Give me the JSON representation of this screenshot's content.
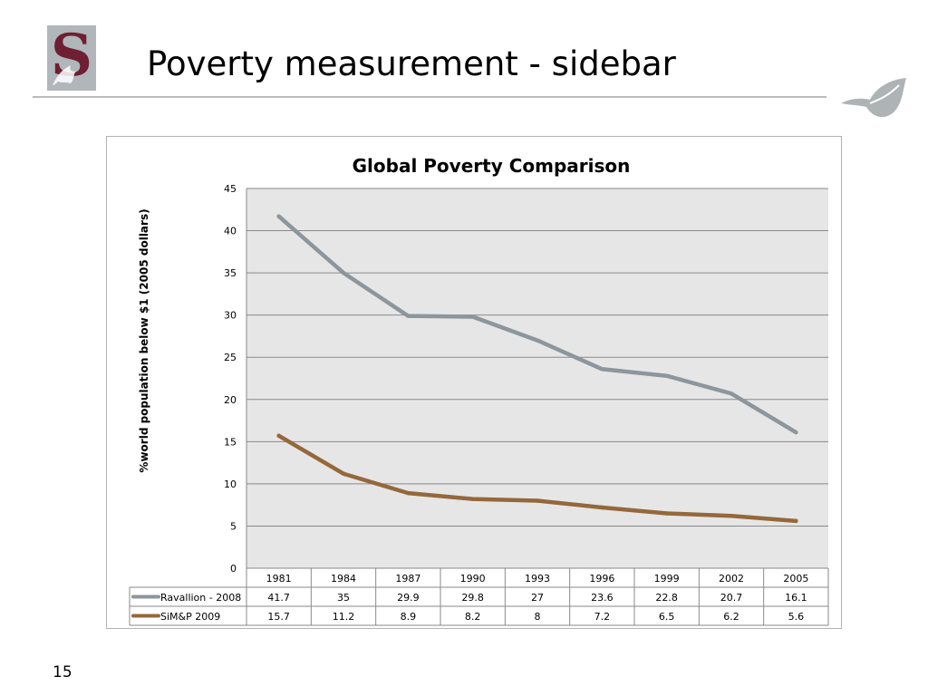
{
  "slide": {
    "title": "Poverty measurement - sidebar",
    "page_number": "15",
    "logo_letter": "S"
  },
  "colors": {
    "ravallion": "#8c969c",
    "simp": "#94683c",
    "plot_bg": "#e6e6e6",
    "logo_bg": "#b0b6b9",
    "logo_letter": "#6e1f33"
  },
  "chart_data": {
    "type": "line",
    "title": "Global Poverty Comparison",
    "ylabel": "%world population below $1 (2005 dollars)",
    "xlabel": "",
    "ylim": [
      0,
      45
    ],
    "yticks": [
      0,
      5,
      10,
      15,
      20,
      25,
      30,
      35,
      40,
      45
    ],
    "grid": true,
    "legend": "data-table-left",
    "categories": [
      "1981",
      "1984",
      "1987",
      "1990",
      "1993",
      "1996",
      "1999",
      "2002",
      "2005"
    ],
    "series": [
      {
        "name": "Ravallion - 2008",
        "values": [
          41.7,
          35,
          29.9,
          29.8,
          27,
          23.6,
          22.8,
          20.7,
          16.1
        ]
      },
      {
        "name": "SiM&P 2009",
        "values": [
          15.7,
          11.2,
          8.9,
          8.2,
          8,
          7.2,
          6.5,
          6.2,
          5.6
        ]
      }
    ],
    "table_values": [
      [
        "41.7",
        "35",
        "29.9",
        "29.8",
        "27",
        "23.6",
        "22.8",
        "20.7",
        "16.1"
      ],
      [
        "15.7",
        "11.2",
        "8.9",
        "8.2",
        "8",
        "7.2",
        "6.5",
        "6.2",
        "5.6"
      ]
    ]
  }
}
